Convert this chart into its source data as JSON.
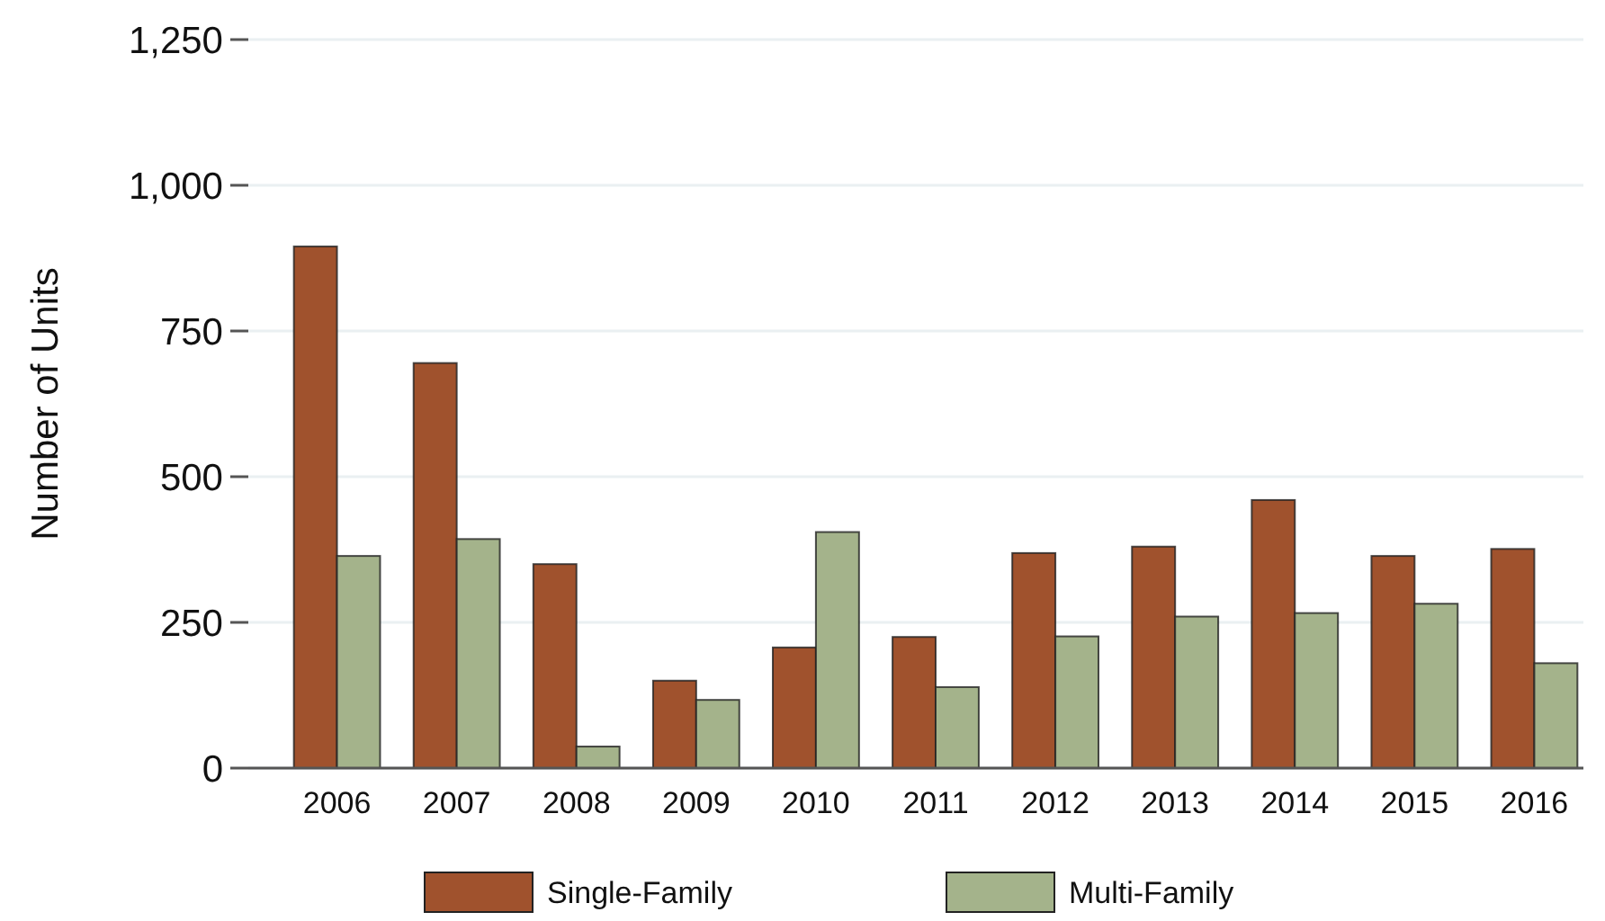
{
  "chart_data": {
    "type": "bar",
    "ylabel": "Number of Units",
    "categories": [
      "2006",
      "2007",
      "2008",
      "2009",
      "2010",
      "2011",
      "2012",
      "2013",
      "2014",
      "2015",
      "2016"
    ],
    "series": [
      {
        "name": "Single-Family",
        "color": "#a0522d",
        "values": [
          895,
          695,
          350,
          150,
          207,
          225,
          369,
          380,
          460,
          364,
          376
        ]
      },
      {
        "name": "Multi-Family",
        "color": "#a4b38b",
        "values": [
          364,
          393,
          37,
          117,
          405,
          139,
          226,
          260,
          266,
          282,
          180
        ]
      }
    ],
    "ylim": [
      0,
      1250
    ],
    "yticks": [
      0,
      250,
      500,
      750,
      {
        "value": 1000,
        "label": "1,000"
      },
      {
        "value": 1250,
        "label": "1,250"
      }
    ],
    "grid": "y",
    "legend": "bottom"
  }
}
